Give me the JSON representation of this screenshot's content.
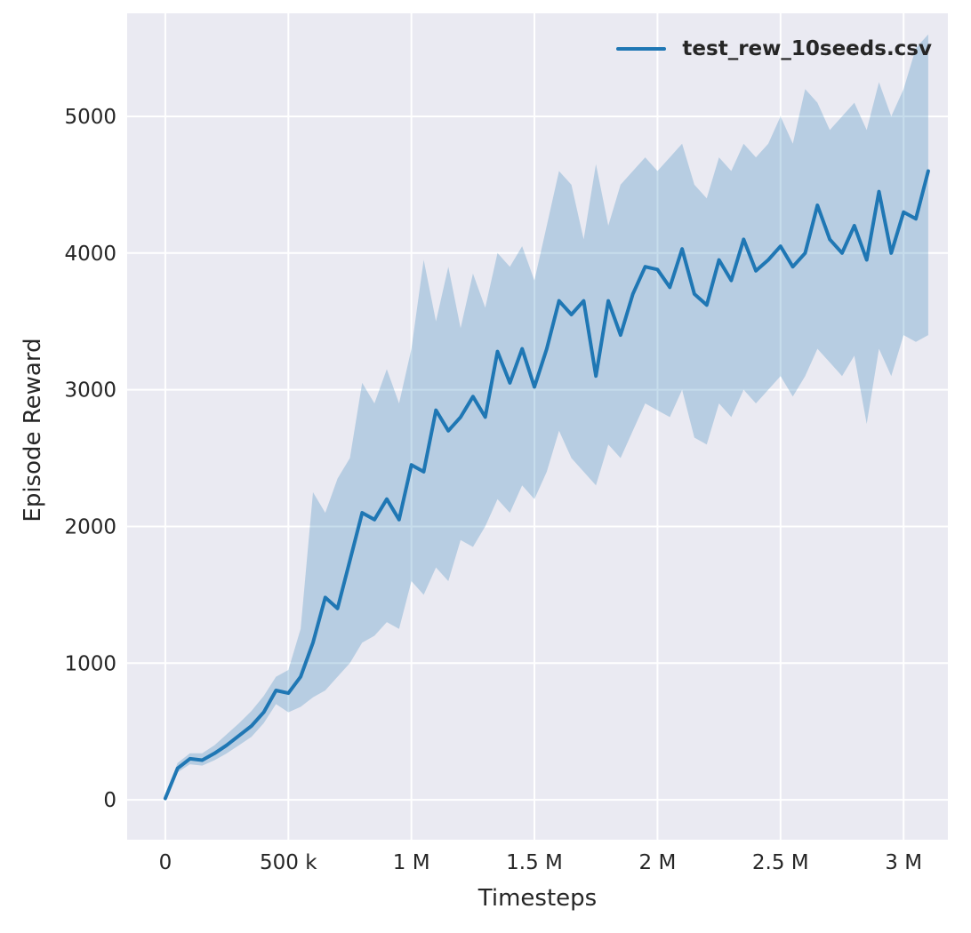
{
  "chart_data": {
    "type": "line",
    "title": "",
    "xlabel": "Timesteps",
    "ylabel": "Episode Reward",
    "legend": [
      "test_rew_10seeds.csv"
    ],
    "legend_position": "upper right",
    "grid": true,
    "background": "#eaeaf2",
    "grid_color": "#ffffff",
    "line_color": "#1f77b4",
    "band_color": "#1f77b4",
    "band_opacity": 0.25,
    "tick_color": "#262626",
    "xlim": [
      -155000,
      3180000
    ],
    "ylim": [
      -292,
      5754
    ],
    "x_ticks": {
      "values": [
        0,
        500000,
        1000000,
        1500000,
        2000000,
        2500000,
        3000000
      ],
      "labels": [
        "0",
        "500 k",
        "1 M",
        "1.5 M",
        "2 M",
        "2.5 M",
        "3 M"
      ]
    },
    "y_ticks": {
      "values": [
        0,
        1000,
        2000,
        3000,
        4000,
        5000
      ],
      "labels": [
        "0",
        "1000",
        "2000",
        "3000",
        "4000",
        "5000"
      ]
    },
    "x": [
      0,
      50000,
      100000,
      150000,
      200000,
      250000,
      300000,
      350000,
      400000,
      450000,
      500000,
      550000,
      600000,
      650000,
      700000,
      750000,
      800000,
      850000,
      900000,
      950000,
      1000000,
      1050000,
      1100000,
      1150000,
      1200000,
      1250000,
      1300000,
      1350000,
      1400000,
      1450000,
      1500000,
      1550000,
      1600000,
      1650000,
      1700000,
      1750000,
      1800000,
      1850000,
      1900000,
      1950000,
      2000000,
      2050000,
      2100000,
      2150000,
      2200000,
      2250000,
      2300000,
      2350000,
      2400000,
      2450000,
      2500000,
      2550000,
      2600000,
      2650000,
      2700000,
      2750000,
      2800000,
      2850000,
      2900000,
      2950000,
      3000000,
      3050000,
      3100000
    ],
    "series": [
      {
        "name": "test_rew_10seeds.csv",
        "mean": [
          10,
          230,
          300,
          290,
          340,
          400,
          470,
          540,
          640,
          800,
          780,
          900,
          1150,
          1480,
          1400,
          1750,
          2100,
          2050,
          2200,
          2050,
          2450,
          2400,
          2850,
          2700,
          2800,
          2950,
          2800,
          3280,
          3050,
          3300,
          3020,
          3300,
          3650,
          3550,
          3650,
          3100,
          3650,
          3400,
          3700,
          3900,
          3880,
          3750,
          4030,
          3700,
          3620,
          3950,
          3800,
          4100,
          3870,
          3950,
          4050,
          3900,
          4000,
          4350,
          4100,
          4000,
          4200,
          3950,
          4450,
          4000,
          4300,
          4250,
          4600
        ],
        "lower": [
          0,
          200,
          260,
          250,
          290,
          340,
          400,
          460,
          560,
          700,
          640,
          680,
          750,
          800,
          900,
          1000,
          1150,
          1200,
          1300,
          1250,
          1600,
          1500,
          1700,
          1600,
          1900,
          1850,
          2000,
          2200,
          2100,
          2300,
          2200,
          2400,
          2700,
          2500,
          2400,
          2300,
          2600,
          2500,
          2700,
          2900,
          2850,
          2800,
          3000,
          2650,
          2600,
          2900,
          2800,
          3000,
          2900,
          3000,
          3100,
          2950,
          3100,
          3300,
          3200,
          3100,
          3250,
          2750,
          3300,
          3100,
          3400,
          3350,
          3400
        ],
        "upper": [
          30,
          270,
          340,
          340,
          400,
          480,
          560,
          650,
          760,
          900,
          950,
          1250,
          2250,
          2100,
          2350,
          2500,
          3050,
          2900,
          3150,
          2900,
          3300,
          3950,
          3500,
          3900,
          3450,
          3850,
          3600,
          4000,
          3900,
          4050,
          3800,
          4200,
          4600,
          4500,
          4100,
          4650,
          4200,
          4500,
          4600,
          4700,
          4600,
          4700,
          4800,
          4500,
          4400,
          4700,
          4600,
          4800,
          4700,
          4800,
          5000,
          4800,
          5200,
          5100,
          4900,
          5000,
          5100,
          4900,
          5250,
          5000,
          5200,
          5500,
          5600
        ]
      }
    ]
  }
}
